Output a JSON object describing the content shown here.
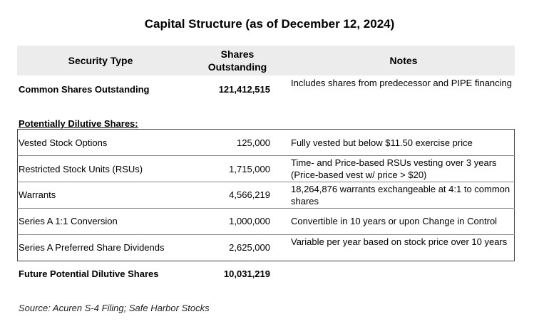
{
  "title": "Capital Structure (as of December 12, 2024)",
  "columns": {
    "security_type": "Security Type",
    "shares_outstanding_line1": "Shares",
    "shares_outstanding_line2": "Outstanding",
    "notes": "Notes"
  },
  "common": {
    "label": "Common Shares Outstanding",
    "value": "121,412,515",
    "note": "Includes shares from predecessor and PIPE financing"
  },
  "dilutive_heading": "Potentially Dilutive Shares:",
  "rows": [
    {
      "label": "Vested Stock Options",
      "value": "125,000",
      "note": "Fully vested but below $11.50 exercise price"
    },
    {
      "label": "Restricted Stock Units (RSUs)",
      "value": "1,715,000",
      "note": "Time- and Price-based RSUs vesting over 3 years (Price-based vest w/ price > $20)"
    },
    {
      "label": "Warrants",
      "value": "4,566,219",
      "note": "18,264,876 warrants exchangeable at 4:1 to common shares"
    },
    {
      "label": "Series A 1:1 Conversion",
      "value": "1,000,000",
      "note": "Convertible in 10 years or upon Change in Control"
    },
    {
      "label": "Series A Preferred Share Dividends",
      "value": "2,625,000",
      "note": "Variable per year based on stock price over 10 years"
    }
  ],
  "total": {
    "label": "Future Potential Dilutive Shares",
    "value": "10,031,219"
  },
  "source": "Source: Acuren S-4 Filing; Safe Harbor Stocks"
}
